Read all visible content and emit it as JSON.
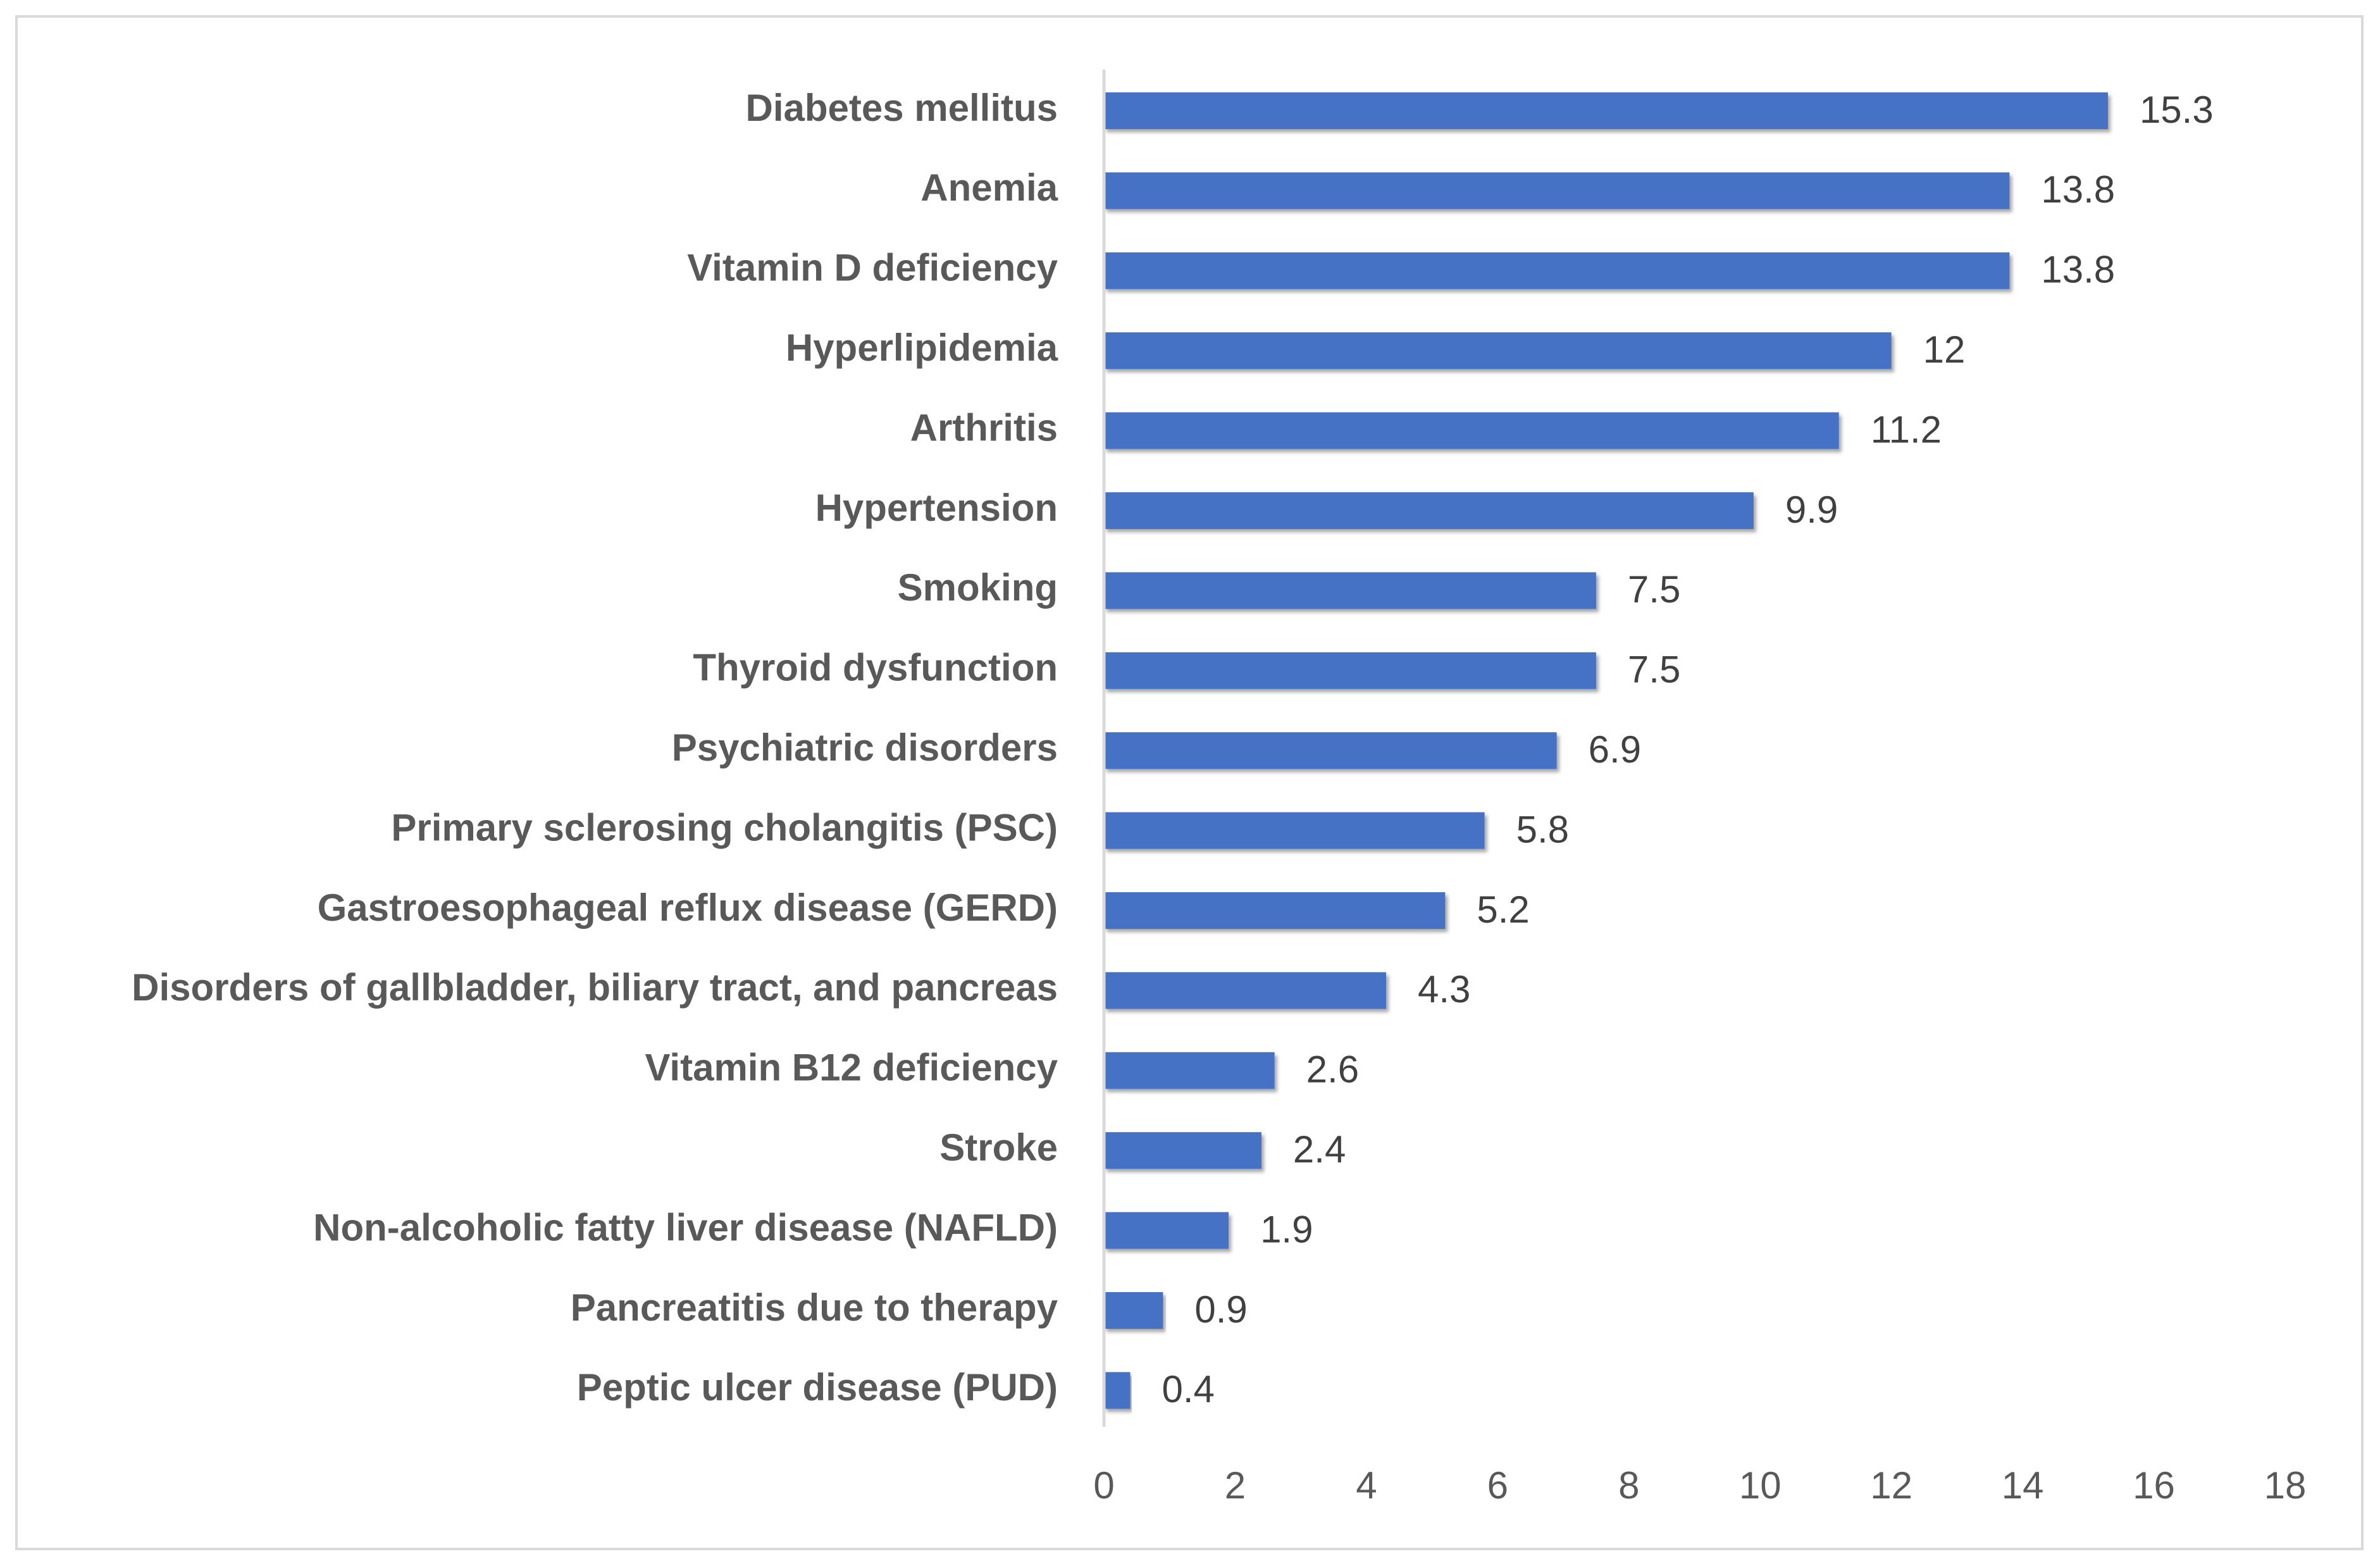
{
  "chart_data": {
    "type": "bar",
    "orientation": "horizontal",
    "categories": [
      "Diabetes mellitus",
      "Anemia",
      "Vitamin D deficiency",
      "Hyperlipidemia",
      "Arthritis",
      "Hypertension",
      "Smoking",
      "Thyroid dysfunction",
      "Psychiatric disorders",
      "Primary sclerosing cholangitis (PSC)",
      "Gastroesophageal reflux disease (GERD)",
      "Disorders of gallbladder, biliary tract, and pancreas",
      "Vitamin B12 deficiency",
      "Stroke",
      "Non-alcoholic fatty liver disease (NAFLD)",
      "Pancreatitis due to therapy",
      "Peptic ulcer disease (PUD)"
    ],
    "values": [
      15.3,
      13.8,
      13.8,
      12,
      11.2,
      9.9,
      7.5,
      7.5,
      6.9,
      5.8,
      5.2,
      4.3,
      2.6,
      2.4,
      1.9,
      0.9,
      0.4
    ],
    "value_labels": [
      "15.3",
      "13.8",
      "13.8",
      "12",
      "11.2",
      "9.9",
      "7.5",
      "7.5",
      "6.9",
      "5.8",
      "5.2",
      "4.3",
      "2.6",
      "2.4",
      "1.9",
      "0.9",
      "0.4"
    ],
    "x_ticks": [
      "0",
      "2",
      "4",
      "6",
      "8",
      "10",
      "12",
      "14",
      "16",
      "18"
    ],
    "xlim": [
      0,
      18
    ],
    "title": "",
    "xlabel": "",
    "ylabel": "",
    "grid": false,
    "legend": "none",
    "bar_color": "#4472c4",
    "axis_color": "#d9d9d9"
  }
}
